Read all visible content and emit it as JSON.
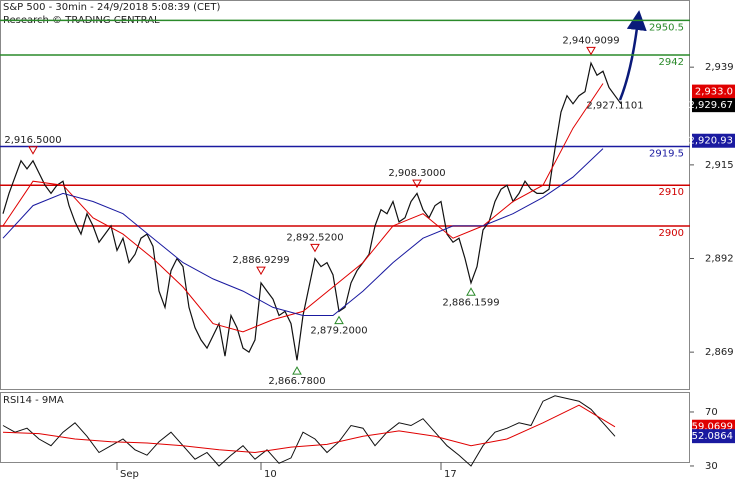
{
  "chart_data": [
    {
      "type": "line",
      "title": "S&P 500 - 30min - 24/9/2018 5:08:39 (CET)",
      "subtitle": "Research © TRADING CENTRAL",
      "xlim": [
        -0.5,
        114.5
      ],
      "ylim": [
        2859.7,
        2955.5
      ],
      "yticks": [
        {
          "value": 2939,
          "label": "2,939"
        },
        {
          "value": 2915,
          "label": "2,915"
        },
        {
          "value": 2892,
          "label": "2,892"
        },
        {
          "value": 2869,
          "label": "2,869"
        }
      ],
      "series": [
        {
          "color": "#111111",
          "width": 1.2,
          "x": [
            0,
            1,
            2,
            3,
            4,
            5,
            6,
            7,
            8,
            9,
            10,
            11,
            12,
            13,
            14,
            15,
            16,
            17,
            18,
            19,
            20,
            21,
            22,
            23,
            24,
            25,
            26,
            27,
            28,
            29,
            30,
            31,
            32,
            33,
            34,
            35,
            36,
            37,
            38,
            39,
            40,
            41,
            42,
            43,
            44,
            45,
            46,
            47,
            48,
            49,
            50,
            51,
            52,
            53,
            54,
            55,
            56,
            57,
            58,
            59,
            60,
            61,
            62,
            63,
            64,
            65,
            66,
            67,
            68,
            69,
            70,
            71,
            72,
            73,
            74,
            75,
            76,
            77,
            78,
            79,
            80,
            81,
            82,
            83,
            84,
            85,
            86,
            87,
            88,
            89,
            90,
            91,
            92,
            93,
            94,
            95,
            96,
            97,
            98,
            99,
            100,
            101,
            102,
            103
          ],
          "values": [
            2903,
            2908,
            2912,
            2916,
            2914,
            2916,
            2913,
            2910,
            2908,
            2910,
            2911,
            2905,
            2901,
            2898,
            2903,
            2900,
            2896,
            2898,
            2900,
            2894,
            2897,
            2891,
            2893,
            2897,
            2898,
            2895,
            2884,
            2880,
            2889,
            2892,
            2890,
            2880,
            2875,
            2872,
            2870,
            2873,
            2876,
            2868,
            2878,
            2875,
            2870,
            2869,
            2872,
            2886,
            2884,
            2882,
            2878,
            2879,
            2876,
            2867,
            2878,
            2885,
            2892,
            2890,
            2891,
            2888,
            2879,
            2880,
            2886,
            2889,
            2891,
            2893,
            2900,
            2904,
            2903,
            2906,
            2901,
            2902,
            2906,
            2908,
            2904,
            2902,
            2905,
            2906,
            2898,
            2896,
            2897,
            2892,
            2886,
            2890,
            2899,
            2901,
            2906,
            2909,
            2910,
            2906,
            2908,
            2911,
            2909,
            2908,
            2908,
            2909,
            2919,
            2928,
            2932,
            2930,
            2932,
            2933,
            2940,
            2937,
            2938,
            2934,
            2932,
            2930
          ]
        },
        {
          "color": "#e00000",
          "width": 1,
          "x": [
            0,
            5,
            10,
            15,
            20,
            25,
            30,
            35,
            40,
            45,
            50,
            55,
            60,
            65,
            70,
            75,
            80,
            85,
            90,
            95,
            100
          ],
          "values": [
            2900,
            2911,
            2910,
            2902,
            2898,
            2892,
            2885,
            2876,
            2874,
            2877,
            2879,
            2885,
            2891,
            2900,
            2903,
            2897,
            2900,
            2906,
            2910,
            2924,
            2935
          ]
        },
        {
          "color": "#1a1aa0",
          "width": 1,
          "x": [
            0,
            5,
            10,
            15,
            20,
            25,
            30,
            35,
            40,
            45,
            50,
            55,
            60,
            65,
            70,
            75,
            80,
            85,
            90,
            95,
            100
          ],
          "values": [
            2897,
            2905,
            2908,
            2906,
            2903,
            2897,
            2891,
            2887,
            2884,
            2880,
            2878,
            2878,
            2884,
            2891,
            2897,
            2900,
            2900,
            2903,
            2907,
            2912,
            2919
          ]
        }
      ],
      "levels": [
        {
          "value": 2950.5,
          "label": "2950.5",
          "color": "#2a8a2a"
        },
        {
          "value": 2942,
          "label": "2942",
          "color": "#2a8a2a"
        },
        {
          "value": 2919.5,
          "label": "2919.5",
          "color": "#1a1aa0"
        },
        {
          "value": 2910,
          "label": "2910",
          "color": "#d00000"
        },
        {
          "value": 2900,
          "label": "2900",
          "color": "#d00000"
        }
      ],
      "annotations": [
        {
          "x": 5,
          "value": 2916.5,
          "label": "2,916.5000",
          "kind": "high"
        },
        {
          "x": 98,
          "value": 2940.9099,
          "label": "2,940.9099",
          "kind": "high"
        },
        {
          "x": 69,
          "value": 2908.3,
          "label": "2,908.3000",
          "kind": "high"
        },
        {
          "x": 43,
          "value": 2886.9299,
          "label": "2,886.9299",
          "kind": "high"
        },
        {
          "x": 52,
          "value": 2892.52,
          "label": "2,892.5200",
          "kind": "high"
        },
        {
          "x": 56,
          "value": 2879.2,
          "label": "2,879.2000",
          "kind": "low"
        },
        {
          "x": 78,
          "value": 2886.1599,
          "label": "2,886.1599",
          "kind": "low"
        },
        {
          "x": 49,
          "value": 2866.78,
          "label": "2,866.7800",
          "kind": "low"
        },
        {
          "x": 102,
          "value": 2927.1101,
          "label": "2,927.1101",
          "kind": "label"
        }
      ],
      "price_tags": [
        {
          "value": 2933.0,
          "label": "2,933.0",
          "color": "#e00000"
        },
        {
          "value": 2929.67,
          "label": "2,929.67",
          "color": "#000000"
        },
        {
          "value": 2920.93,
          "label": "2,920.93",
          "color": "#1a1aa0"
        }
      ]
    },
    {
      "type": "line",
      "title": "RSI14 - 9MA",
      "xlim": [
        -0.5,
        114.5
      ],
      "ylim": [
        19.6,
        84.8
      ],
      "yticks": [
        70,
        30
      ],
      "xticks": [
        {
          "value": 19,
          "label": "Sep"
        },
        {
          "value": 43,
          "label": "10"
        },
        {
          "value": 73,
          "label": "17"
        }
      ],
      "series": [
        {
          "color": "#111111",
          "width": 1,
          "x": [
            0,
            2,
            4,
            6,
            8,
            10,
            12,
            14,
            16,
            18,
            20,
            22,
            24,
            26,
            28,
            30,
            32,
            34,
            36,
            38,
            40,
            42,
            44,
            46,
            48,
            50,
            52,
            54,
            56,
            58,
            60,
            62,
            64,
            66,
            68,
            70,
            72,
            74,
            76,
            78,
            80,
            82,
            84,
            86,
            88,
            90,
            92,
            94,
            96,
            98,
            100,
            102
          ],
          "values": [
            60,
            55,
            58,
            50,
            45,
            55,
            62,
            52,
            40,
            45,
            50,
            42,
            38,
            48,
            55,
            45,
            35,
            40,
            30,
            38,
            45,
            35,
            42,
            32,
            36,
            55,
            50,
            40,
            48,
            60,
            58,
            45,
            55,
            62,
            60,
            65,
            55,
            45,
            38,
            30,
            45,
            55,
            58,
            62,
            60,
            78,
            82,
            80,
            78,
            72,
            62,
            52
          ]
        },
        {
          "color": "#e00000",
          "width": 1,
          "x": [
            0,
            6,
            12,
            18,
            24,
            30,
            36,
            42,
            48,
            54,
            60,
            66,
            72,
            78,
            84,
            90,
            96,
            102
          ],
          "values": [
            55,
            54,
            50,
            48,
            47,
            45,
            42,
            40,
            44,
            46,
            52,
            56,
            52,
            45,
            50,
            62,
            75,
            59
          ]
        }
      ],
      "price_tags": [
        {
          "value": 59.0699,
          "label": "59.0699",
          "color": "#e00000"
        },
        {
          "value": 52.0864,
          "label": "52.0864",
          "color": "#1a1aa0"
        }
      ]
    }
  ]
}
